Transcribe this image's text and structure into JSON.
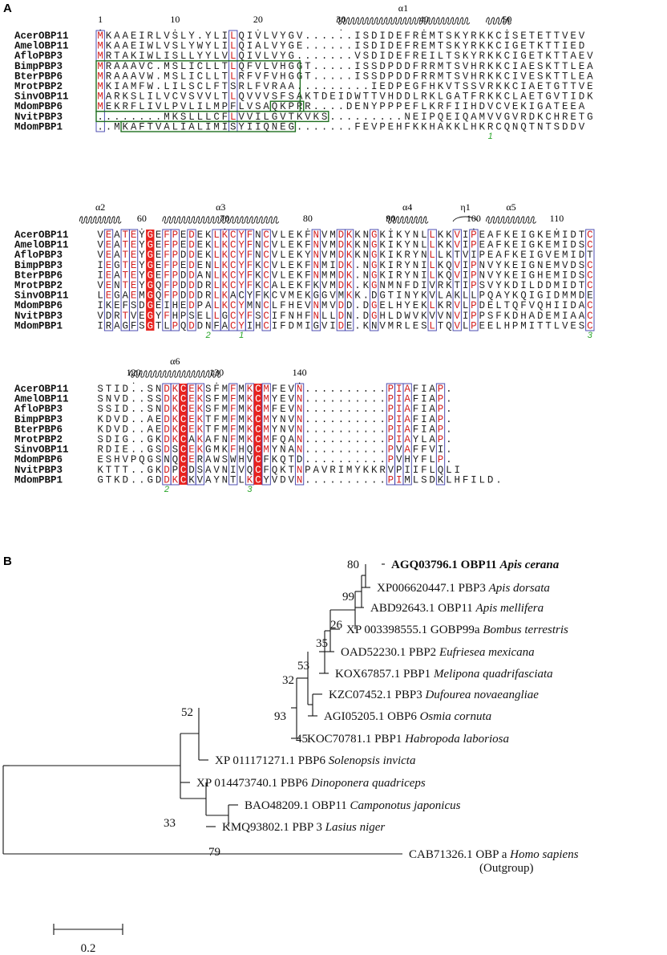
{
  "panel_a_label": "A",
  "panel_b_label": "B",
  "alignment": {
    "blocks": [
      {
        "start": 1,
        "positions": [
          "1",
          "10",
          "20",
          "30",
          "40",
          "50"
        ],
        "sse": [
          {
            "label": "α1",
            "type": "helix",
            "from": 30,
            "to": 46
          },
          {
            "label": "",
            "type": "helix",
            "from": 48,
            "to": 51
          }
        ],
        "seqs": [
          {
            "name": "AcerOBP11",
            "seq": "MKAAEIRLVSLY.YLILQIVLVYGV......ISDIDEFREMTSKYRKKCISETETTVEV"
          },
          {
            "name": "AmelOBP11",
            "seq": "MKAAEIWLVSLYWYLILQIALVYGE......ISDIDEFREMTSKYRKKCIGETKTTIED"
          },
          {
            "name": "AfloPBP3",
            "seq": "MRTAKIWLISLLYYLVLQIVLVYG.......VSDIDEFREILTSKYRKKCIGETKTTAEV"
          },
          {
            "name": "BimpPBP3",
            "seq": "MRAAAVC.MSLICLLTLQFVLVHGGT.....ISSDPDDFRRMTSVHRKKCIAESKTTLEA"
          },
          {
            "name": "BterPBP6",
            "seq": "MRAAAVW.MSLICLLTLRFVFVHGGT.....ISSDPDDFRRMTSVHRKKCIVESKTTLEA"
          },
          {
            "name": "MrotPBP2",
            "seq": "MKIAMFW.LILSCLFTSRLFVRAA.........IEDPEGFHKVTSSVRKKCIAETGTTVED"
          },
          {
            "name": "SinvOBP11",
            "seq": "MARKSLILVCVSVVLTLQVVVSFSAKTDEIDWTTVHDDLRKLGATFRKKCLAETGVTIDK"
          },
          {
            "name": "MdomPBP6",
            "seq": "MEKRFLIVLPVLILMPFLVSAQKPRR....DENYPPPEFLKRFIIHDVCVEKIGATEEA"
          },
          {
            "name": "NvitPBP3",
            "seq": "........MKSLLLCFLVVILGVTKVKS.........NEIPQEIQAMVVGVRDKCHRETGVDIEH"
          },
          {
            "name": "MdomPBP1",
            "seq": "..MKAFTVALIALIMISYIIQNEG.......FEVPEHFKKHAKKLHKRCQNQTNTSDDV"
          }
        ]
      },
      {
        "start": 55,
        "positions": [
          "60",
          "70",
          "80",
          "90",
          "100",
          "110"
        ],
        "sse": [
          {
            "label": "α2",
            "type": "helix",
            "from": 53,
            "to": 58
          },
          {
            "label": "α3",
            "type": "helix",
            "from": 63,
            "to": 77
          },
          {
            "label": "α4",
            "type": "helix",
            "from": 90,
            "to": 95
          },
          {
            "label": "η1",
            "type": "turn",
            "from": 98,
            "to": 101
          },
          {
            "label": "α5",
            "type": "helix",
            "from": 102,
            "to": 108
          }
        ],
        "seqs": [
          {
            "name": "AcerOBP11",
            "seq": "VEATEYGEFPEDEKLKCYFNCVLEKFNVMDKKNGKIKYNLLKKVIPEAFKEIGKEMIDTC"
          },
          {
            "name": "AmelOBP11",
            "seq": "VEATEYGEFPEDEKLKCYFNCVLEKFNVMDKKNGKIKYNLLKKVIPEAFKEIGKEMIDSC"
          },
          {
            "name": "AfloPBP3",
            "seq": "VEATEYGEFPDDEKLKCYFNCVLEKYNVMDKKNGKIKRYNLLKTVIPEAFKEIGVEMIDTC"
          },
          {
            "name": "BimpPBP3",
            "seq": "IEGTEYGEFPEDENLKCYFKCVLEKFNMIDK.NGKIRYNILKQVIPNVYKEIGNEMVDSC"
          },
          {
            "name": "BterPBP6",
            "seq": "IEATEYGEFPDDANLKCYFKCVLEKFNMMDK.NGKIRYNILKQVIPNVYKEIGHEMIDSC"
          },
          {
            "name": "MrotPBP2",
            "seq": "VENTEYGQFPDDDRLKCYFKCALEKFKVMDK.KGNMNFDIVRKTIPSVYKDILDDMIDTC"
          },
          {
            "name": "SinvOBP11",
            "seq": "LEGAEMGQFPDDDRLKACYFKCVMEKGGVMKK.DGTINYKVLAKLLPQAYKQIGIDMMDEC"
          },
          {
            "name": "MdomPBP6",
            "seq": "IKEFSDGEIHEDPALKCYMNCLFHEVNMVDD.DGELHYEKLKRVLPDELTQFVQHIIDAC"
          },
          {
            "name": "NvitPBP3",
            "seq": "VDRTVEGYFHPSELLGCYFSCIFNHFNLLDN.DGHLDWVKVVNVIPPSFKDHADEMIAAC"
          },
          {
            "name": "MdomPBP1",
            "seq": "IRAGFSGTLPQDDNFACYIHCIFDMIGVIDE.KNVMRLESLTQVLPEELHPMITTLVESC"
          }
        ]
      },
      {
        "start": 116,
        "positions": [
          "120",
          "130",
          "140"
        ],
        "sse": [
          {
            "label": "α6",
            "type": "helix",
            "from": 120,
            "to": 131
          }
        ],
        "seqs": [
          {
            "name": "AcerOBP11",
            "seq": "STID..SNDKCEKSFMFMKCMFEVN..........PIAFIAP."
          },
          {
            "name": "AmelOBP11",
            "seq": "SNVD..SSDKCEKSFMFMKCMYEVN..........PIAFIAP."
          },
          {
            "name": "AfloPBP3",
            "seq": "SSID..SNDKCEKSFMFMKCMFEVN..........PIAFIAP."
          },
          {
            "name": "BimpPBP3",
            "seq": "KDVD..AEDKCEKTFMFMKCMYNVN..........PIAFIAP."
          },
          {
            "name": "BterPBP6",
            "seq": "KDVD..AEDKCEKTFMFMKCMYNVN..........PIAFIAP."
          },
          {
            "name": "MrotPBP2",
            "seq": "SDIG..GKDKCAKAFNFMKCMFQAN..........PIAYLAP."
          },
          {
            "name": "SinvOBP11",
            "seq": "RDIE..GSDSCEKGMKFHQCMYNAN..........PVAFFVI."
          },
          {
            "name": "MdomPBP6",
            "seq": "ESHVPQGSNQCERAWSWHVCFKQTD..........PVHYFLP."
          },
          {
            "name": "NvitPBP3",
            "seq": "KTTT..GKDPCDSAVNIVQCFQKTNPAVRIMYKKRVPIIFLQLI"
          },
          {
            "name": "MdomPBP1",
            "seq": "GTKD..GDDKCKVAYNTLKCYVDVN..........PIMLSDKLHFILD."
          }
        ]
      }
    ],
    "ssbond_labels": [
      "1",
      "2",
      "1",
      "3",
      "2",
      "3"
    ]
  },
  "tree": {
    "taxa": [
      {
        "acc": "AGQ03796.1 OBP11",
        "species": "Apis cerana",
        "bold": true
      },
      {
        "acc": "XP006620447.1 PBP3",
        "species": "Apis dorsata",
        "bold": false
      },
      {
        "acc": "ABD92643.1 OBP11",
        "species": "Apis mellifera",
        "bold": false
      },
      {
        "acc": "XP 003398555.1 GOBP99a",
        "species": "Bombus terrestris",
        "bold": false
      },
      {
        "acc": "OAD52230.1 PBP2",
        "species": "Eufriesea mexicana",
        "bold": false
      },
      {
        "acc": "KOX67857.1 PBP1",
        "species": "Melipona quadrifasciata",
        "bold": false
      },
      {
        "acc": "KZC07452.1 PBP3",
        "species": "Dufourea novaeangliae",
        "bold": false
      },
      {
        "acc": "AGI05205.1 OBP6",
        "species": "Osmia cornuta",
        "bold": false
      },
      {
        "acc": "KOC70781.1 PBP1",
        "species": "Habropoda laboriosa",
        "bold": false
      },
      {
        "acc": "XP 011171271.1 PBP6",
        "species": "Solenopsis invicta",
        "bold": false
      },
      {
        "acc": "XP 014473740.1 PBP6",
        "species": "Dinoponera quadriceps",
        "bold": false
      },
      {
        "acc": "BAO48209.1 OBP11",
        "species": "Camponotus japonicus",
        "bold": false
      },
      {
        "acc": "KMQ93802.1 PBP 3",
        "species": "Lasius niger",
        "bold": false
      },
      {
        "acc": "CAB71326.1 OBP a",
        "species": "Homo sapiens",
        "bold": false
      }
    ],
    "outgroup_note": "(Outgroup)",
    "bootstraps": [
      "80",
      "99",
      "26",
      "35",
      "53",
      "32",
      "93",
      "45",
      "52",
      "33",
      "79"
    ],
    "scale_label": "0.2"
  }
}
